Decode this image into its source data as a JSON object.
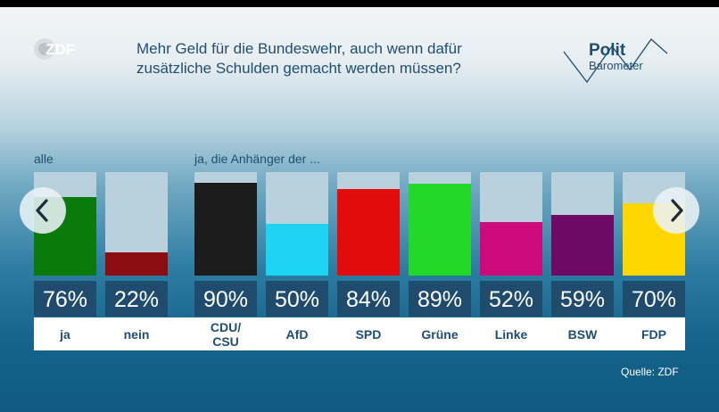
{
  "header": {
    "logo_text": "ZDF",
    "title_line1": "Mehr Geld für die Bundeswehr, auch wenn dafür",
    "title_line2": "zusätzliche Schulden gemacht werden müssen?",
    "brand_line1": "Polit",
    "brand_line2": "Barometer"
  },
  "footer": {
    "source": "Quelle: ZDF"
  },
  "nav": {
    "prev_icon": "chevron-left-icon",
    "next_icon": "chevron-right-icon"
  },
  "chart_data": {
    "type": "bar",
    "title": "Mehr Geld für die Bundeswehr, auch wenn dafür zusätzliche Schulden gemacht werden müssen?",
    "ylim": [
      0,
      100
    ],
    "unit": "%",
    "groups": [
      {
        "label": "alle",
        "bars": [
          {
            "category": "ja",
            "value": 76,
            "label": "76%",
            "color": "#0a7a0a"
          },
          {
            "category": "nein",
            "value": 22,
            "label": "22%",
            "color": "#8b0d10"
          }
        ]
      },
      {
        "label": "ja, die Anhänger der ...",
        "bars": [
          {
            "category": "CDU/\nCSU",
            "value": 90,
            "label": "90%",
            "color": "#1c1c1c"
          },
          {
            "category": "AfD",
            "value": 50,
            "label": "50%",
            "color": "#1fd3f5"
          },
          {
            "category": "SPD",
            "value": 84,
            "label": "84%",
            "color": "#e20c0c"
          },
          {
            "category": "Grüne",
            "value": 89,
            "label": "89%",
            "color": "#22d92a"
          },
          {
            "category": "Linke",
            "value": 52,
            "label": "52%",
            "color": "#cc0a7e"
          },
          {
            "category": "BSW",
            "value": 59,
            "label": "59%",
            "color": "#6e0a66"
          },
          {
            "category": "FDP",
            "value": 70,
            "label": "70%",
            "color": "#ffd600"
          }
        ]
      }
    ]
  }
}
